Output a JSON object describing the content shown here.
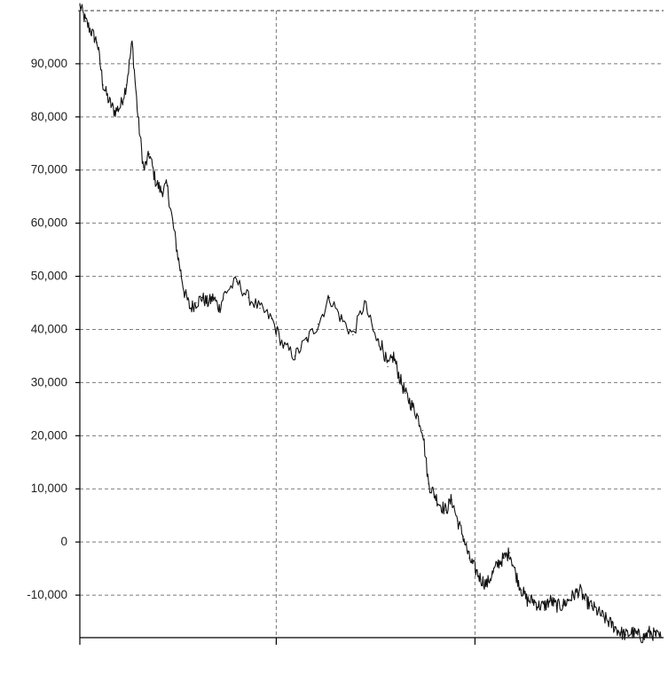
{
  "chart_data": {
    "type": "line",
    "title": "",
    "xlabel": "",
    "ylabel": "",
    "grid": true,
    "legend": "none",
    "ylim": [
      -18000,
      100000
    ],
    "xlim": [
      0,
      1
    ],
    "y_ticks": [
      -10000,
      0,
      10000,
      20000,
      30000,
      40000,
      50000,
      60000,
      70000,
      80000,
      90000
    ],
    "y_tick_labels": [
      "-10,000",
      "0",
      "10,000",
      "20,000",
      "30,000",
      "40,000",
      "50,000",
      "60,000",
      "70,000",
      "80,000",
      "90,000"
    ],
    "x_ticks": [
      0,
      0.338,
      0.68
    ],
    "x_tick_labels": [
      "",
      "",
      ""
    ],
    "series": [
      {
        "color": "#111111",
        "x": [
          0.0,
          0.01,
          0.02,
          0.03,
          0.04,
          0.05,
          0.06,
          0.07,
          0.08,
          0.09,
          0.1,
          0.11,
          0.12,
          0.13,
          0.14,
          0.15,
          0.16,
          0.17,
          0.18,
          0.19,
          0.2,
          0.21,
          0.22,
          0.23,
          0.24,
          0.25,
          0.27,
          0.29,
          0.31,
          0.33,
          0.35,
          0.37,
          0.39,
          0.41,
          0.43,
          0.45,
          0.47,
          0.49,
          0.51,
          0.52,
          0.53,
          0.54,
          0.55,
          0.56,
          0.57,
          0.58,
          0.59,
          0.6,
          0.61,
          0.62,
          0.63,
          0.64,
          0.65,
          0.66,
          0.67,
          0.68,
          0.69,
          0.7,
          0.71,
          0.72,
          0.73,
          0.74,
          0.75,
          0.76,
          0.77,
          0.78,
          0.79,
          0.8,
          0.81,
          0.82,
          0.83,
          0.84,
          0.85,
          0.86,
          0.87,
          0.88,
          0.89,
          0.9,
          0.91,
          0.92,
          0.93,
          0.94,
          0.95,
          0.96,
          0.97,
          0.98,
          0.99,
          1.0
        ],
        "y": [
          101000,
          98000,
          96000,
          94000,
          86000,
          83000,
          81000,
          82000,
          86000,
          94000,
          80000,
          70000,
          73000,
          68000,
          66000,
          67000,
          60000,
          53000,
          47000,
          44000,
          45000,
          46000,
          45000,
          46000,
          44000,
          47000,
          49000,
          46000,
          44000,
          42000,
          37000,
          35000,
          38000,
          41000,
          46000,
          42000,
          39000,
          45000,
          38000,
          37000,
          33000,
          35000,
          31000,
          28000,
          26000,
          24000,
          21000,
          11000,
          9000,
          7000,
          6000,
          8000,
          4000,
          1000,
          -3000,
          -5000,
          -7000,
          -8000,
          -6000,
          -4000,
          -3000,
          -2000,
          -6000,
          -9000,
          -11000,
          -11000,
          -12000,
          -12000,
          -11000,
          -12000,
          -12000,
          -11000,
          -10000,
          -9000,
          -11000,
          -12000,
          -13000,
          -14000,
          -15000,
          -16000,
          -17000,
          -17500,
          -17000,
          -17500,
          -18000,
          -17000,
          -17500,
          -18000
        ]
      }
    ]
  }
}
